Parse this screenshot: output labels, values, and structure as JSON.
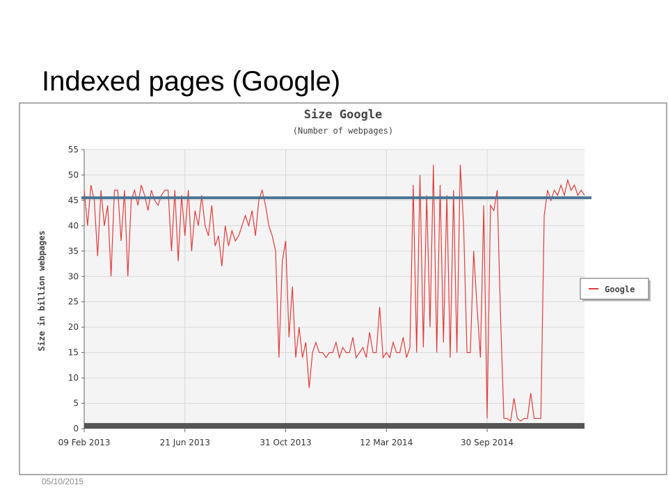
{
  "slide_title": "Indexed pages (Google)",
  "footer_date": "05/10/2015",
  "chart_data": {
    "type": "line",
    "title": "Size Google",
    "subtitle": "(Number of webpages)",
    "y_label": "Size in billion webpages",
    "xlim": [
      0,
      149
    ],
    "xticks": [
      {
        "value": 0,
        "label": "09 Feb 2013"
      },
      {
        "value": 30,
        "label": "21 Jun 2013"
      },
      {
        "value": 60,
        "label": "31 Oct 2013"
      },
      {
        "value": 90,
        "label": "12 Mar 2014"
      },
      {
        "value": 120,
        "label": "30 Sep 2014"
      }
    ],
    "ylim": [
      0,
      55
    ],
    "yticks": [
      0,
      5,
      10,
      15,
      20,
      25,
      30,
      35,
      40,
      45,
      50,
      55
    ],
    "grid": true,
    "legend": "right",
    "reference_line": {
      "value": 45.5,
      "color": "#4a7394"
    },
    "series": [
      {
        "name": "Google",
        "color": "#e03c3c",
        "values": [
          47,
          40,
          48,
          45,
          34,
          47,
          40,
          44,
          30,
          47,
          47,
          37,
          47,
          30,
          45,
          47,
          44,
          48,
          46,
          43,
          47,
          45,
          44,
          46,
          47,
          47,
          35,
          47,
          33,
          46,
          38,
          47,
          35,
          43,
          40,
          46,
          40,
          38,
          44,
          36,
          38,
          32,
          40,
          36,
          39,
          37,
          38,
          40,
          42,
          40,
          43,
          38,
          45,
          47,
          44,
          40,
          38,
          35,
          14,
          33,
          37,
          18,
          28,
          14,
          20,
          14,
          17,
          8,
          15,
          17,
          15,
          15,
          14,
          15,
          15,
          17,
          14,
          16,
          15,
          15,
          18,
          14,
          15,
          16,
          14,
          19,
          15,
          15,
          24,
          14,
          15,
          14,
          17,
          15,
          15,
          18,
          14,
          16,
          48,
          15,
          50,
          16,
          46,
          20,
          52,
          15,
          48,
          17,
          46,
          14,
          47,
          15,
          52,
          40,
          15,
          15,
          35,
          24,
          14,
          44,
          2,
          44,
          43,
          47,
          22,
          2,
          2,
          1.5,
          6,
          2,
          1.5,
          2,
          2,
          7,
          2,
          2,
          2,
          42,
          47,
          45,
          47,
          46,
          48,
          46,
          49,
          47,
          48,
          46,
          47,
          46
        ]
      }
    ]
  }
}
